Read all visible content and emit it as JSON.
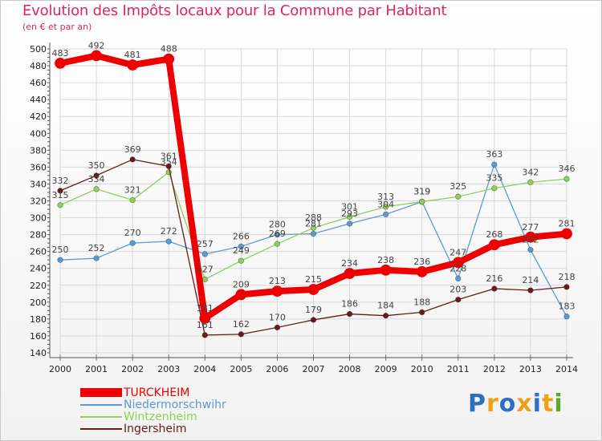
{
  "header": {
    "title": "Evolution des Impôts locaux pour la Commune par Habitant",
    "subtitle": "(en € et par an)"
  },
  "logo": {
    "letters": [
      "P",
      "r",
      "o",
      "x",
      "i",
      "t",
      "i"
    ],
    "colors": [
      "#2f6fc1",
      "#f0a018",
      "#2f6fc1",
      "#f0a018",
      "#2f6fc1",
      "#f0a018",
      "#5aa829"
    ]
  },
  "chart_data": {
    "type": "line",
    "title": "Evolution des Impôts locaux pour la Commune par Habitant",
    "subtitle": "(en € et par an)",
    "x": [
      2000,
      2001,
      2002,
      2003,
      2004,
      2005,
      2006,
      2007,
      2008,
      2009,
      2010,
      2011,
      2012,
      2013,
      2014
    ],
    "ylim": [
      140,
      500
    ],
    "yticks": [
      140,
      160,
      180,
      200,
      220,
      240,
      260,
      280,
      300,
      320,
      340,
      360,
      380,
      400,
      420,
      440,
      460,
      480,
      500
    ],
    "grid": true,
    "legend_position": "bottom-left",
    "series": [
      {
        "name": "TURCKHEIM",
        "color": "#ee0000",
        "emphasis": true,
        "values": [
          483,
          492,
          481,
          488,
          181,
          209,
          213,
          215,
          234,
          238,
          236,
          247,
          268,
          277,
          281
        ]
      },
      {
        "name": "Niedermorschwihr",
        "color": "#5b9bd5",
        "emphasis": false,
        "values": [
          250,
          252,
          270,
          272,
          257,
          266,
          280,
          281,
          293,
          304,
          319,
          228,
          363,
          262,
          183
        ]
      },
      {
        "name": "Wintzenheim",
        "color": "#8fd05a",
        "emphasis": false,
        "values": [
          315,
          334,
          321,
          354,
          227,
          249,
          269,
          288,
          301,
          313,
          319,
          325,
          335,
          342,
          346
        ]
      },
      {
        "name": "Ingersheim",
        "color": "#6b1a1a",
        "emphasis": false,
        "values": [
          332,
          350,
          369,
          361,
          161,
          162,
          170,
          179,
          186,
          184,
          188,
          203,
          216,
          214,
          218
        ]
      }
    ]
  }
}
